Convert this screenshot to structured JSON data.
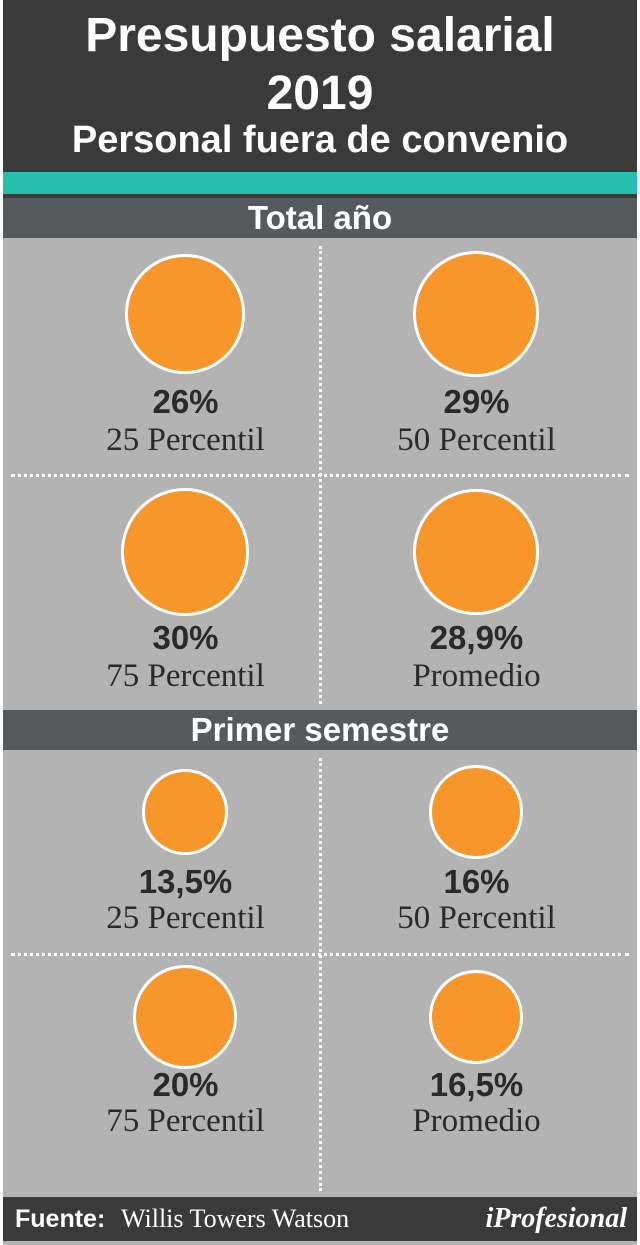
{
  "header": {
    "title_line1": "Presupuesto salarial",
    "title_line2": "2019",
    "subtitle": "Personal fuera de convenio"
  },
  "colors": {
    "header_bg": "#3a3a3a",
    "accent_teal": "#26bfaf",
    "section_bg": "#565a5c",
    "panel_bg": "#b3b3b3",
    "circle_fill": "#f7962a"
  },
  "chart_data": {
    "type": "bubble",
    "sections": [
      {
        "title": "Total año",
        "items": [
          {
            "label": "25 Percentil",
            "value": 26,
            "display": "26%"
          },
          {
            "label": "50 Percentil",
            "value": 29,
            "display": "29%"
          },
          {
            "label": "75 Percentil",
            "value": 30,
            "display": "30%"
          },
          {
            "label": "Promedio",
            "value": 28.9,
            "display": "28,9%"
          }
        ]
      },
      {
        "title": "Primer semestre",
        "items": [
          {
            "label": "25 Percentil",
            "value": 13.5,
            "display": "13,5%"
          },
          {
            "label": "50 Percentil",
            "value": 16,
            "display": "16%"
          },
          {
            "label": "75 Percentil",
            "value": 20,
            "display": "20%"
          },
          {
            "label": "Promedio",
            "value": 16.5,
            "display": "16,5%"
          }
        ]
      }
    ]
  },
  "footer": {
    "source_label": "Fuente:",
    "source_value": "Willis Towers Watson",
    "brand": "iProfesional"
  }
}
